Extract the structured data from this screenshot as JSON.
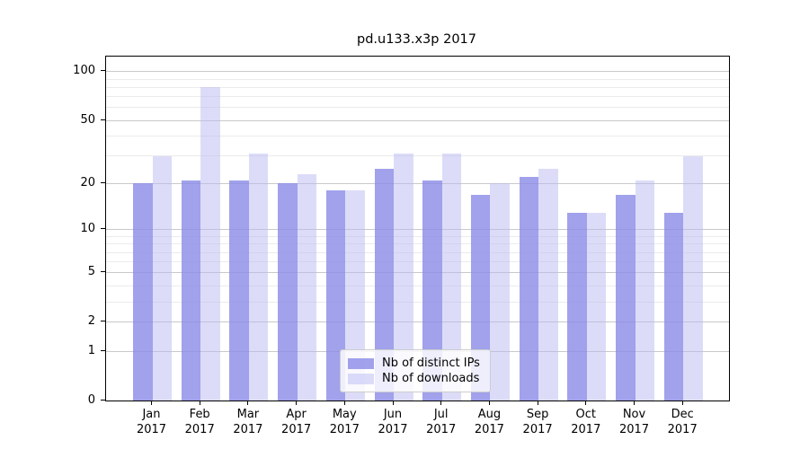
{
  "title": "pd.u133.x3p 2017",
  "chart_data": {
    "type": "bar",
    "title": "pd.u133.x3p 2017",
    "categories": [
      "Jan 2017",
      "Feb 2017",
      "Mar 2017",
      "Apr 2017",
      "May 2017",
      "Jun 2017",
      "Jul 2017",
      "Aug 2017",
      "Sep 2017",
      "Oct 2017",
      "Nov 2017",
      "Dec 2017"
    ],
    "x_tick_line1": [
      "Jan",
      "Feb",
      "Mar",
      "Apr",
      "May",
      "Jun",
      "Jul",
      "Aug",
      "Sep",
      "Oct",
      "Nov",
      "Dec"
    ],
    "x_tick_line2": "2017",
    "series": [
      {
        "name": "Nb of distinct IPs",
        "color": "#9e9eec",
        "css_color": "rgba(140,140,232,0.82)",
        "values": [
          20,
          21,
          21,
          20,
          18,
          25,
          21,
          17,
          22,
          13,
          17,
          13
        ]
      },
      {
        "name": "Nb of downloads",
        "color": "#dcdcf9",
        "css_color": "rgba(185,185,243,0.5)",
        "values": [
          30,
          80,
          31,
          23,
          18,
          31,
          31,
          20,
          25,
          13,
          21,
          30
        ]
      }
    ],
    "xlabel": "",
    "ylabel": "",
    "yscale": "log1p",
    "ylim": [
      0,
      124
    ],
    "y_major_ticks": [
      0,
      1,
      2,
      5,
      10,
      20,
      50,
      100
    ],
    "y_minor_gridlines": [
      3,
      4,
      6,
      7,
      8,
      9,
      30,
      40,
      60,
      70,
      80,
      90
    ],
    "grid": "horizontal",
    "legend_position": "lower center inside"
  },
  "legend": {
    "items": [
      {
        "label": "Nb of distinct IPs"
      },
      {
        "label": "Nb of downloads"
      }
    ]
  },
  "colors": {
    "background": "#ffffff",
    "bar_ips": "#9e9eec",
    "bar_downloads": "#dcdcf9",
    "grid_major": "#c9c9c9",
    "grid_minor": "#ebebeb",
    "axis": "#000000",
    "legend_border": "#cccccc"
  }
}
